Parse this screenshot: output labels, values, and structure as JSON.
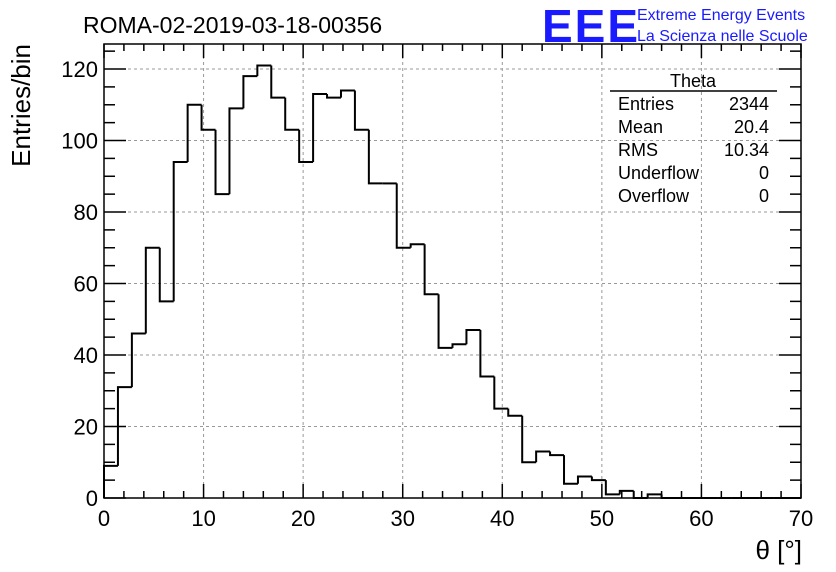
{
  "header": {
    "run_title": "ROMA-02-2019-03-18-00356",
    "logo_text": "EEE",
    "logo_line1": "Extreme Energy Events",
    "logo_line2": "La Scienza nelle Scuole",
    "logo_color": "#1a1aff"
  },
  "stats_box": {
    "title": "Theta",
    "rows": [
      {
        "label": "Entries",
        "value": "2344"
      },
      {
        "label": "Mean",
        "value": "20.4"
      },
      {
        "label": "RMS",
        "value": "10.34"
      },
      {
        "label": "Underflow",
        "value": "0"
      },
      {
        "label": "Overflow",
        "value": "0"
      }
    ]
  },
  "chart_data": {
    "type": "histogram",
    "title": "ROMA-02-2019-03-18-00356",
    "xlabel": "θ [°]",
    "ylabel": "Entries/bin",
    "xlim": [
      0,
      70
    ],
    "ylim": [
      0,
      127
    ],
    "bin_width": 1.4,
    "bin_start": 0,
    "values": [
      9,
      31,
      46,
      70,
      55,
      94,
      110,
      103,
      85,
      109,
      118,
      121,
      112,
      103,
      94,
      113,
      112,
      114,
      103,
      88,
      88,
      70,
      71,
      57,
      42,
      43,
      47,
      34,
      25,
      23,
      10,
      13,
      12,
      4,
      6,
      5,
      1,
      2,
      0,
      1,
      0,
      0,
      0,
      0,
      0,
      0,
      0,
      0,
      0,
      0
    ],
    "x_ticks": [
      0,
      10,
      20,
      30,
      40,
      50,
      60,
      70
    ],
    "y_ticks": [
      0,
      20,
      40,
      60,
      80,
      100,
      120
    ],
    "grid": true,
    "line_color": "#000000"
  }
}
